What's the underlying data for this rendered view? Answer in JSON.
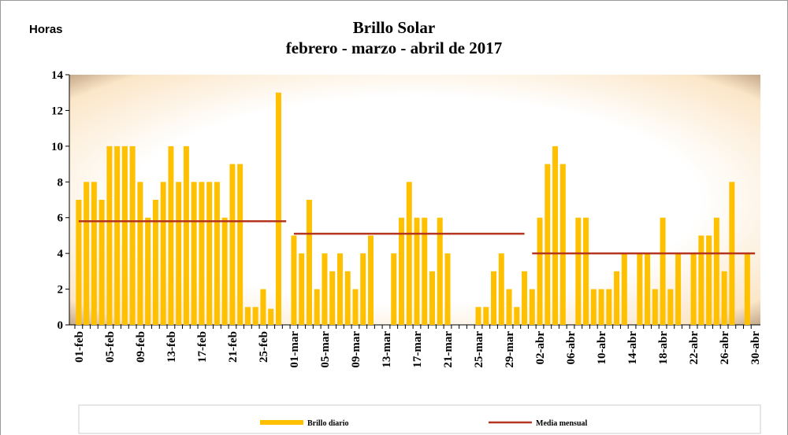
{
  "chart_data": {
    "type": "bar",
    "title": "Brillo Solar",
    "subtitle": "febrero - marzo - abril de 2017",
    "y_label": "Horas",
    "categories": [
      "01-feb",
      null,
      null,
      null,
      "05-feb",
      null,
      null,
      null,
      "09-feb",
      null,
      null,
      null,
      "13-feb",
      null,
      null,
      null,
      "17-feb",
      null,
      null,
      null,
      "21-feb",
      null,
      null,
      null,
      "25-feb",
      null,
      null,
      null,
      "01-mar",
      null,
      null,
      null,
      "05-mar",
      null,
      null,
      null,
      "09-mar",
      null,
      null,
      null,
      "13-mar",
      null,
      null,
      null,
      "17-mar",
      null,
      null,
      null,
      "21-mar",
      null,
      null,
      null,
      "25-mar",
      null,
      null,
      null,
      "29-mar",
      null,
      null,
      null,
      "02-abr",
      null,
      null,
      null,
      "06-abr",
      null,
      null,
      null,
      "10-abr",
      null,
      null,
      null,
      "14-abr",
      null,
      null,
      null,
      "18-abr",
      null,
      null,
      null,
      "22-abr",
      null,
      null,
      null,
      "26-abr",
      null,
      null,
      null,
      "30-abr"
    ],
    "series": [
      {
        "name": "Brillo diario",
        "color": "#ffc000",
        "type": "bar",
        "values": [
          7,
          8,
          8,
          7,
          10,
          10,
          10,
          10,
          8,
          6,
          7,
          8,
          10,
          8,
          10,
          8,
          8,
          8,
          8,
          6,
          9,
          9,
          1,
          1,
          2,
          0.9,
          13,
          0,
          5,
          4,
          7,
          2,
          4,
          3,
          4,
          3,
          2,
          4,
          5,
          0,
          0,
          4,
          6,
          8,
          6,
          6,
          3,
          6,
          4,
          0,
          0,
          0,
          1,
          1,
          3,
          4,
          2,
          1,
          3,
          2,
          6,
          9,
          10,
          9,
          0,
          6,
          6,
          2,
          2,
          2,
          3,
          4,
          0,
          4,
          4,
          2,
          6,
          2,
          4,
          0,
          4,
          5,
          5,
          6,
          3,
          8,
          0,
          4,
          0
        ]
      },
      {
        "name": "Media mensual",
        "color": "#b5351f",
        "type": "line",
        "values": [
          5.8,
          5.8,
          5.8,
          5.8,
          5.8,
          5.8,
          5.8,
          5.8,
          5.8,
          5.8,
          5.8,
          5.8,
          5.8,
          5.8,
          5.8,
          5.8,
          5.8,
          5.8,
          5.8,
          5.8,
          5.8,
          5.8,
          5.8,
          5.8,
          5.8,
          5.8,
          5.8,
          5.8,
          5.1,
          5.1,
          5.1,
          5.1,
          5.1,
          5.1,
          5.1,
          5.1,
          5.1,
          5.1,
          5.1,
          5.1,
          5.1,
          5.1,
          5.1,
          5.1,
          5.1,
          5.1,
          5.1,
          5.1,
          5.1,
          5.1,
          5.1,
          5.1,
          5.1,
          5.1,
          5.1,
          5.1,
          5.1,
          5.1,
          5.1,
          4,
          4,
          4,
          4,
          4,
          4,
          4,
          4,
          4,
          4,
          4,
          4,
          4,
          4,
          4,
          4,
          4,
          4,
          4,
          4,
          4,
          4,
          4,
          4,
          4,
          4,
          4,
          4,
          4,
          4
        ]
      }
    ],
    "ylim": [
      0,
      14
    ],
    "yticks": [
      0,
      2,
      4,
      6,
      8,
      10,
      12,
      14
    ],
    "grid": false
  }
}
